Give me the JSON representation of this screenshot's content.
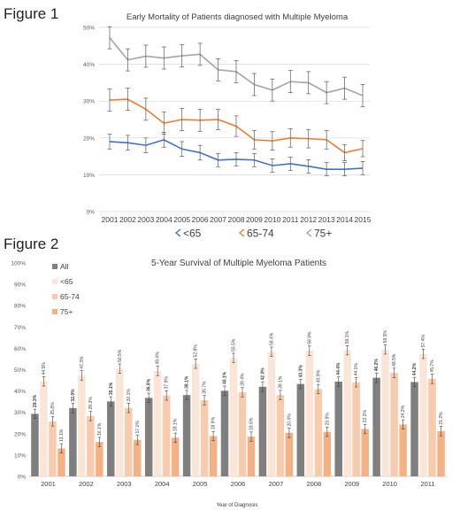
{
  "figure1_label": "Figure 1",
  "figure2_label": "Figure 2",
  "chart_data": [
    {
      "type": "line",
      "title": "Early Mortality of Patients diagnosed with Multiple Myeloma",
      "x": [
        "2001",
        "2002",
        "2003",
        "2004",
        "2005",
        "2006",
        "2007",
        "2008",
        "2009",
        "2010",
        "2011",
        "2012",
        "2013",
        "2014",
        "2015"
      ],
      "ylim": [
        0,
        50
      ],
      "yticks": [
        "0%",
        "10%",
        "20%",
        "30%",
        "40%",
        "50%"
      ],
      "grid": true,
      "legend": "bottom",
      "series": [
        {
          "name": "<65",
          "color": "#4472C4",
          "values": [
            19,
            18.7,
            18,
            19.5,
            17,
            16,
            14,
            14.2,
            14,
            12.5,
            13,
            12.3,
            11.5,
            11.5,
            11.8
          ],
          "errors": [
            2,
            2,
            2,
            2,
            2,
            2,
            1.8,
            1.8,
            1.8,
            1.8,
            1.8,
            1.8,
            1.8,
            1.8,
            1.8
          ]
        },
        {
          "name": "65-74",
          "color": "#ED7D31",
          "values": [
            30.3,
            30.5,
            27.8,
            24,
            25,
            24.8,
            25,
            23.2,
            19.5,
            19.2,
            20,
            19.8,
            19.5,
            16,
            17.1
          ],
          "errors": [
            3,
            3,
            3,
            3,
            3,
            3,
            2.8,
            2.8,
            2.5,
            2.5,
            2.5,
            2.5,
            2.5,
            2.2,
            2.2
          ]
        },
        {
          "name": "75+",
          "color": "#A5A5A5",
          "values": [
            47.2,
            41.2,
            42.2,
            41.7,
            42.3,
            42.7,
            38.5,
            38,
            34.5,
            33,
            35.3,
            35,
            32.3,
            33.5,
            31.5
          ],
          "errors": [
            3,
            3,
            3,
            3,
            3,
            3,
            3,
            3,
            3,
            3,
            3,
            3,
            3,
            3,
            3
          ]
        }
      ]
    },
    {
      "type": "bar",
      "title": "5-Year Survival of Multiple Myeloma Patients",
      "xlabel": "Year of Diagnosis",
      "categories": [
        "2001",
        "2002",
        "2003",
        "2004",
        "2005",
        "2006",
        "2007",
        "2008",
        "2009",
        "2010",
        "2011"
      ],
      "ylim": [
        0,
        100
      ],
      "yticks": [
        "0%",
        "10%",
        "20%",
        "30%",
        "40%",
        "50%",
        "60%",
        "70%",
        "80%",
        "90%",
        "100%"
      ],
      "grid": false,
      "legend": "top-left",
      "series": [
        {
          "name": "All",
          "color": "#7F7F7F",
          "values": [
            29.3,
            32.0,
            35.1,
            36.8,
            38.1,
            40.1,
            42.0,
            43.3,
            44.4,
            46.2,
            44.2
          ],
          "labels": [
            "29.3%",
            "32.0%",
            "35.1%",
            "36.8%",
            "38.1%",
            "40.1%",
            "42.0%",
            "43.3%",
            "44.4%",
            "46.2%",
            "44.2%"
          ],
          "bold": true
        },
        {
          "name": "<65",
          "color": "#FBE5D6",
          "values": [
            44.5,
            47.3,
            50.5,
            49.4,
            52.8,
            55.5,
            58.4,
            58.9,
            59.1,
            59.5,
            57.4
          ],
          "labels": [
            "44.5%",
            "47.3%",
            "50.5%",
            "49.4%",
            "52.8%",
            "55.5%",
            "58.4%",
            "58.9%",
            "59.1%",
            "59.5%",
            "57.4%"
          ]
        },
        {
          "name": "65-74",
          "color": "#F8CBAD",
          "values": [
            25.8,
            28.3,
            32.1,
            37.9,
            35.7,
            39.4,
            38.1,
            40.9,
            44.1,
            48.5,
            45.7
          ],
          "labels": [
            "25.8%",
            "28.3%",
            "32.1%",
            "37.9%",
            "35.7%",
            "39.4%",
            "38.1%",
            "40.9%",
            "44.1%",
            "48.5%",
            "45.7%"
          ]
        },
        {
          "name": "75+",
          "color": "#F4B183",
          "values": [
            13.1,
            16.1,
            17.1,
            18.1,
            18.9,
            18.6,
            20.4,
            20.9,
            22.2,
            24.3,
            21.2
          ],
          "labels": [
            "13.1%",
            "16.1%",
            "17.1%",
            "18.1%",
            "18.9%",
            "18.6%",
            "20.4%",
            "20.9%",
            "22.2%",
            "24.3%",
            "21.2%"
          ]
        }
      ]
    }
  ]
}
